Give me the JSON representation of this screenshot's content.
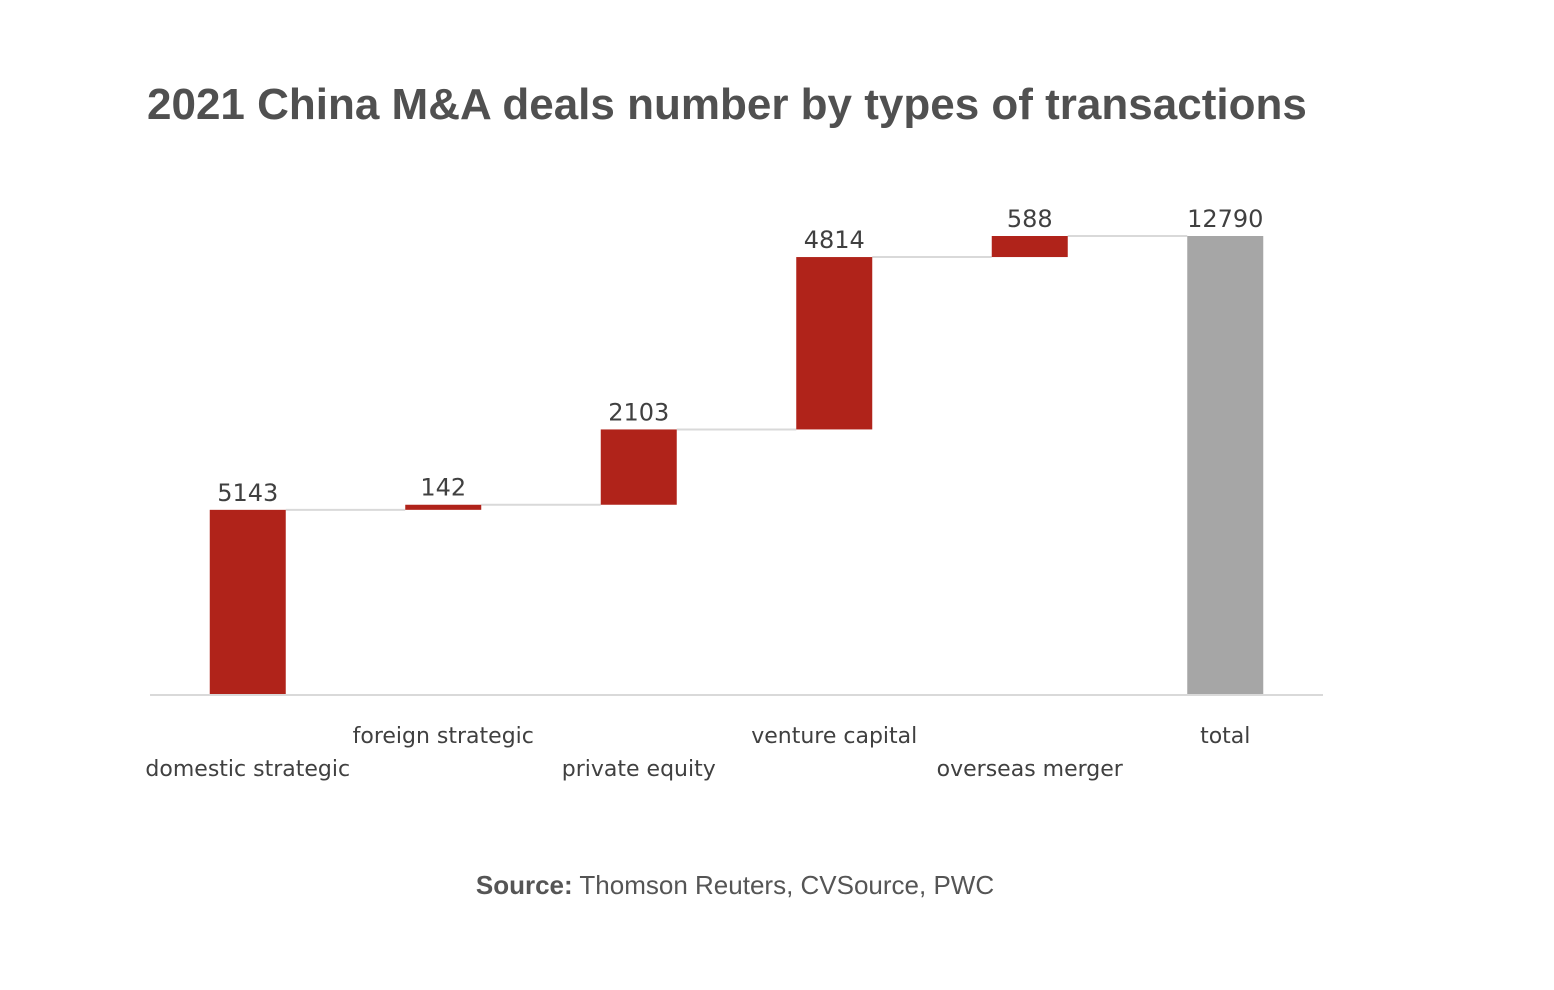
{
  "chart_data": {
    "type": "waterfall",
    "title": "2021 China M&A deals number by types of transactions",
    "categories": [
      "domestic strategic",
      "foreign strategic",
      "private equity",
      "venture capital",
      "overseas merger",
      "total"
    ],
    "values": [
      5143,
      142,
      2103,
      4814,
      588,
      12790
    ],
    "is_total": [
      false,
      false,
      false,
      false,
      false,
      true
    ],
    "colors": {
      "increase": "#B0231A",
      "total": "#A6A6A6",
      "connector": "#D9D9D9",
      "axis": "#D9D9D9"
    }
  },
  "source": {
    "label": "Source:",
    "text": " Thomson Reuters, CVSource, PWC"
  }
}
